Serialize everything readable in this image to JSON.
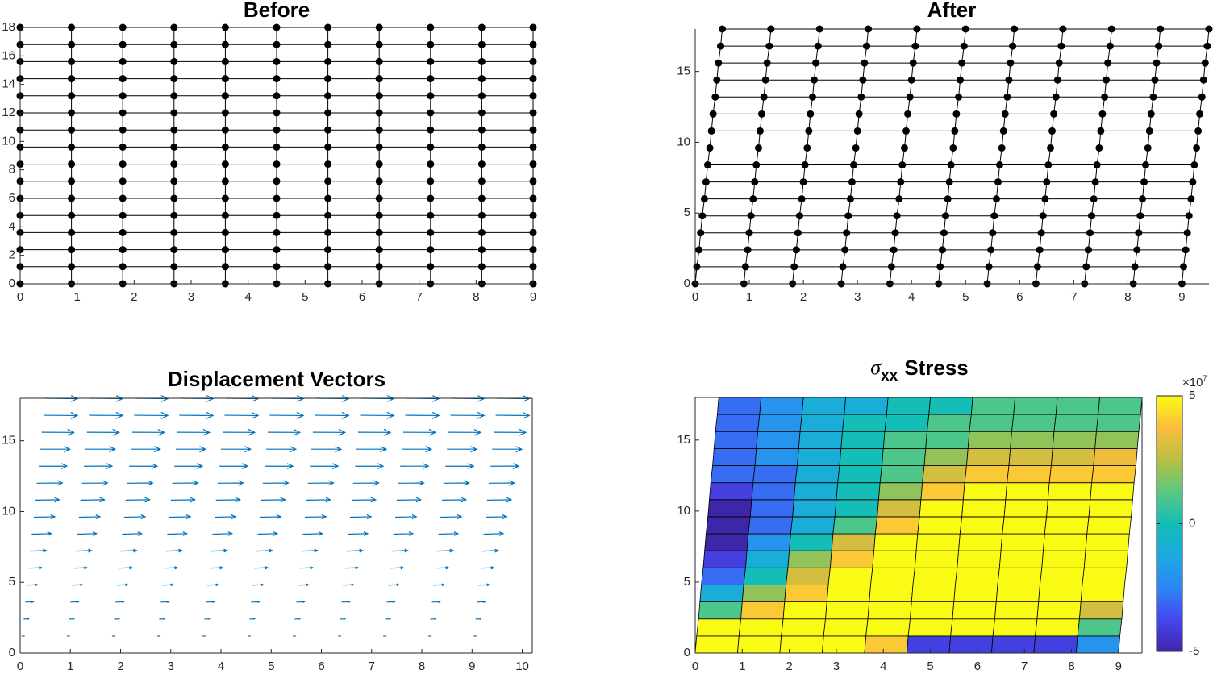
{
  "chart_data": [
    {
      "type": "mesh",
      "title": "Before",
      "xlim": [
        0,
        9
      ],
      "ylim": [
        0,
        18
      ],
      "xticks": [
        0,
        1,
        2,
        3,
        4,
        5,
        6,
        7,
        8,
        9
      ],
      "yticks": [
        0,
        2,
        4,
        6,
        8,
        10,
        12,
        14,
        16,
        18
      ],
      "color": "#000000",
      "node_rows": [
        {
          "y": 0,
          "x": [
            0,
            0.9,
            1.8,
            2.7,
            3.6,
            4.5,
            5.4,
            6.3,
            7.2,
            8.1,
            9
          ]
        },
        {
          "y": 1.2,
          "x": [
            0,
            0.9,
            1.8,
            2.7,
            3.6,
            4.5,
            5.4,
            6.3,
            7.2,
            8.1,
            9
          ]
        },
        {
          "y": 2.4,
          "x": [
            0,
            0.9,
            1.8,
            2.7,
            3.6,
            4.5,
            5.4,
            6.3,
            7.2,
            8.1,
            9
          ]
        },
        {
          "y": 3.6,
          "x": [
            0,
            0.9,
            1.8,
            2.7,
            3.6,
            4.5,
            5.4,
            6.3,
            7.2,
            8.1,
            9
          ]
        },
        {
          "y": 4.8,
          "x": [
            0,
            0.9,
            1.8,
            2.7,
            3.6,
            4.5,
            5.4,
            6.3,
            7.2,
            8.1,
            9
          ]
        },
        {
          "y": 6,
          "x": [
            0,
            0.9,
            1.8,
            2.7,
            3.6,
            4.5,
            5.4,
            6.3,
            7.2,
            8.1,
            9
          ]
        },
        {
          "y": 7.2,
          "x": [
            0,
            0.9,
            1.8,
            2.7,
            3.6,
            4.5,
            5.4,
            6.3,
            7.2,
            8.1,
            9
          ]
        },
        {
          "y": 8.4,
          "x": [
            0,
            0.9,
            1.8,
            2.7,
            3.6,
            4.5,
            5.4,
            6.3,
            7.2,
            8.1,
            9
          ]
        },
        {
          "y": 9.6,
          "x": [
            0,
            0.9,
            1.8,
            2.7,
            3.6,
            4.5,
            5.4,
            6.3,
            7.2,
            8.1,
            9
          ]
        },
        {
          "y": 10.8,
          "x": [
            0,
            0.9,
            1.8,
            2.7,
            3.6,
            4.5,
            5.4,
            6.3,
            7.2,
            8.1,
            9
          ]
        },
        {
          "y": 12,
          "x": [
            0,
            0.9,
            1.8,
            2.7,
            3.6,
            4.5,
            5.4,
            6.3,
            7.2,
            8.1,
            9
          ]
        },
        {
          "y": 13.2,
          "x": [
            0,
            0.9,
            1.8,
            2.7,
            3.6,
            4.5,
            5.4,
            6.3,
            7.2,
            8.1,
            9
          ]
        },
        {
          "y": 14.4,
          "x": [
            0,
            0.9,
            1.8,
            2.7,
            3.6,
            4.5,
            5.4,
            6.3,
            7.2,
            8.1,
            9
          ]
        },
        {
          "y": 15.6,
          "x": [
            0,
            0.9,
            1.8,
            2.7,
            3.6,
            4.5,
            5.4,
            6.3,
            7.2,
            8.1,
            9
          ]
        },
        {
          "y": 16.8,
          "x": [
            0,
            0.9,
            1.8,
            2.7,
            3.6,
            4.5,
            5.4,
            6.3,
            7.2,
            8.1,
            9
          ]
        },
        {
          "y": 18,
          "x": [
            0,
            0.9,
            1.8,
            2.7,
            3.6,
            4.5,
            5.4,
            6.3,
            7.2,
            8.1,
            9
          ]
        }
      ]
    },
    {
      "type": "mesh",
      "title": "After",
      "xlim": [
        0,
        9.5
      ],
      "ylim": [
        0,
        18
      ],
      "xticks": [
        0,
        1,
        2,
        3,
        4,
        5,
        6,
        7,
        8,
        9
      ],
      "yticks": [
        0,
        5,
        10,
        15
      ],
      "color": "#000000",
      "node_rows": [
        {
          "y": 0,
          "x": [
            0,
            0.9,
            1.8,
            2.7,
            3.6,
            4.5,
            5.4,
            6.3,
            7.2,
            8.1,
            9
          ]
        },
        {
          "y": 1.2,
          "x": [
            0.03,
            0.93,
            1.83,
            2.73,
            3.63,
            4.53,
            5.43,
            6.33,
            7.23,
            8.13,
            9.03
          ]
        },
        {
          "y": 2.4,
          "x": [
            0.07,
            0.97,
            1.87,
            2.77,
            3.67,
            4.57,
            5.47,
            6.37,
            7.27,
            8.17,
            9.07
          ]
        },
        {
          "y": 3.6,
          "x": [
            0.1,
            1,
            1.9,
            2.8,
            3.7,
            4.6,
            5.5,
            6.4,
            7.3,
            8.2,
            9.1
          ]
        },
        {
          "y": 4.8,
          "x": [
            0.13,
            1.03,
            1.93,
            2.83,
            3.73,
            4.63,
            5.53,
            6.43,
            7.33,
            8.23,
            9.13
          ]
        },
        {
          "y": 6,
          "x": [
            0.17,
            1.07,
            1.97,
            2.87,
            3.77,
            4.67,
            5.57,
            6.47,
            7.37,
            8.27,
            9.17
          ]
        },
        {
          "y": 7.2,
          "x": [
            0.2,
            1.1,
            2,
            2.9,
            3.8,
            4.7,
            5.6,
            6.5,
            7.4,
            8.3,
            9.2
          ]
        },
        {
          "y": 8.4,
          "x": [
            0.23,
            1.13,
            2.03,
            2.93,
            3.83,
            4.73,
            5.63,
            6.53,
            7.43,
            8.33,
            9.23
          ]
        },
        {
          "y": 9.6,
          "x": [
            0.27,
            1.17,
            2.07,
            2.97,
            3.87,
            4.77,
            5.67,
            6.57,
            7.47,
            8.37,
            9.27
          ]
        },
        {
          "y": 10.8,
          "x": [
            0.3,
            1.2,
            2.1,
            3,
            3.9,
            4.8,
            5.7,
            6.6,
            7.5,
            8.4,
            9.3
          ]
        },
        {
          "y": 12,
          "x": [
            0.33,
            1.23,
            2.13,
            3.03,
            3.93,
            4.83,
            5.73,
            6.63,
            7.53,
            8.43,
            9.33
          ]
        },
        {
          "y": 13.2,
          "x": [
            0.37,
            1.27,
            2.17,
            3.07,
            3.97,
            4.87,
            5.77,
            6.67,
            7.57,
            8.47,
            9.37
          ]
        },
        {
          "y": 14.4,
          "x": [
            0.4,
            1.3,
            2.2,
            3.1,
            4,
            4.9,
            5.8,
            6.7,
            7.6,
            8.5,
            9.4
          ]
        },
        {
          "y": 15.6,
          "x": [
            0.43,
            1.33,
            2.23,
            3.13,
            4.03,
            4.93,
            5.83,
            6.73,
            7.63,
            8.53,
            9.43
          ]
        },
        {
          "y": 16.8,
          "x": [
            0.47,
            1.37,
            2.27,
            3.17,
            4.07,
            4.97,
            5.87,
            6.77,
            7.67,
            8.57,
            9.47
          ]
        },
        {
          "y": 18,
          "x": [
            0.5,
            1.4,
            2.3,
            3.2,
            4.1,
            5,
            5.9,
            6.8,
            7.7,
            8.6,
            9.5
          ]
        }
      ]
    },
    {
      "type": "quiver",
      "title": "Displacement Vectors",
      "xlim": [
        0,
        10.2
      ],
      "ylim": [
        0,
        18
      ],
      "xticks": [
        0,
        1,
        2,
        3,
        4,
        5,
        6,
        7,
        8,
        9,
        10
      ],
      "yticks": [
        0,
        5,
        10,
        15
      ],
      "color": "#0072bd",
      "box": true,
      "u": [
        0,
        0.05,
        0.1,
        0.16,
        0.21,
        0.26,
        0.32,
        0.39,
        0.42,
        0.48,
        0.51,
        0.56,
        0.59,
        0.64,
        0.67,
        0.64
      ],
      "v": [
        0,
        0,
        0.01,
        0.02,
        0.03,
        0.03,
        0.04,
        0.04,
        0.03,
        0.03,
        0.02,
        0.01,
        0,
        -0.01,
        -0.02,
        -0.03
      ]
    },
    {
      "type": "heatmap",
      "title_symbol": "σ",
      "title_subscript": "xx",
      "title": "Stress",
      "xlim": [
        0,
        9.5
      ],
      "ylim": [
        0,
        18
      ],
      "xticks": [
        0,
        1,
        2,
        3,
        4,
        5,
        6,
        7,
        8,
        9
      ],
      "yticks": [
        0,
        5,
        10,
        15
      ],
      "box": true,
      "edge_color": "#000000",
      "values": [
        [
          5,
          5,
          5,
          5,
          4,
          -4,
          -4,
          -4,
          -4,
          -2
        ],
        [
          5,
          5,
          5,
          5,
          5,
          5,
          5,
          5,
          5,
          1
        ],
        [
          1,
          4,
          5,
          5,
          5,
          5,
          5,
          5,
          5,
          3
        ],
        [
          -1,
          2,
          4,
          5,
          5,
          5,
          5,
          5,
          5,
          5
        ],
        [
          -3,
          0,
          3,
          5,
          5,
          5,
          5,
          5,
          5,
          5
        ],
        [
          -4,
          -1,
          2,
          4,
          5,
          5,
          5,
          5,
          5,
          5
        ],
        [
          -5,
          -2,
          0,
          3,
          5,
          5,
          5,
          5,
          5,
          5
        ],
        [
          -5,
          -3,
          -1,
          1,
          4,
          5,
          5,
          5,
          5,
          5
        ],
        [
          -5,
          -3,
          -1,
          0,
          3,
          5,
          5,
          5,
          5,
          5
        ],
        [
          -4,
          -3,
          -1,
          0,
          2,
          4,
          5,
          5,
          5,
          5
        ],
        [
          -3,
          -3,
          -1,
          0,
          1,
          3,
          4,
          4,
          4,
          4
        ],
        [
          -3,
          -2,
          -1,
          0,
          1,
          2,
          3,
          3,
          3,
          3.5
        ],
        [
          -3,
          -2,
          -1,
          0,
          1,
          1,
          2,
          2,
          2,
          2
        ],
        [
          -3,
          -2,
          -1,
          0,
          0,
          1,
          1,
          1,
          1,
          1
        ],
        [
          -3,
          -2,
          -1,
          -1,
          0,
          0,
          1,
          1,
          1,
          1
        ]
      ],
      "clim": [
        -5,
        5
      ],
      "cticks": [
        -5,
        0,
        5
      ],
      "colorbar_multiplier": "×10",
      "colorbar_exponent": "7",
      "colormap": [
        "#3e26a8",
        "#4547ee",
        "#2d86f6",
        "#1ca9df",
        "#14bdb5",
        "#5ac880",
        "#b8c040",
        "#fcbc3d",
        "#f9fb15"
      ]
    }
  ]
}
